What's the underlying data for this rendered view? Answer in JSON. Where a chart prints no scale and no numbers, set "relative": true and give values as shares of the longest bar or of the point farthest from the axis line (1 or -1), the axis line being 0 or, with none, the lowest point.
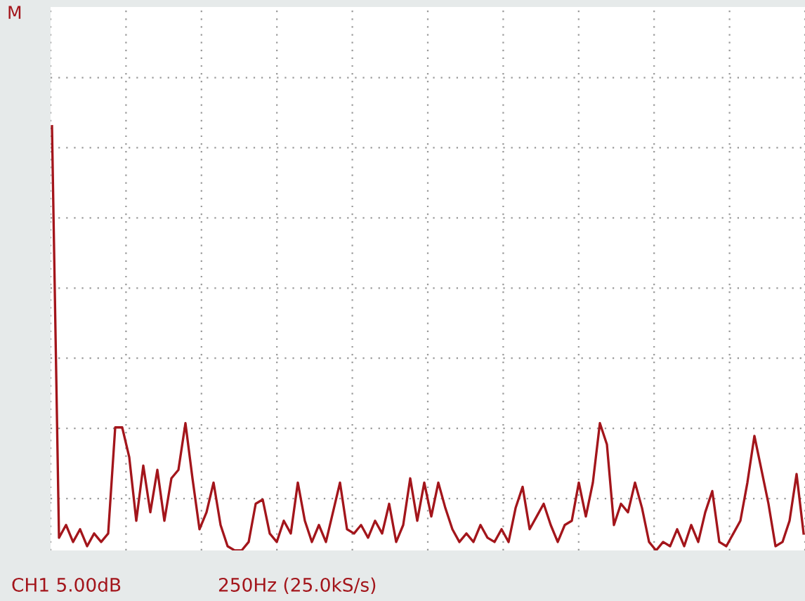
{
  "chart_data": {
    "type": "line",
    "relative": true,
    "grid": true,
    "categories": [
      null,
      null,
      null,
      null,
      null,
      null,
      null,
      null,
      null,
      null,
      null,
      null,
      null,
      null,
      null,
      null,
      null,
      null,
      null,
      null,
      null,
      null,
      null,
      null,
      null,
      null,
      null,
      null,
      null,
      null,
      null,
      null,
      null,
      null,
      null,
      null,
      null,
      null,
      null,
      null,
      null,
      null,
      null,
      null,
      null,
      null,
      null,
      null,
      null,
      null,
      null,
      null,
      null,
      null,
      null,
      null,
      null,
      null,
      null,
      null,
      null,
      null,
      null,
      null,
      null,
      null,
      null,
      null,
      null,
      null,
      null,
      null,
      null,
      null,
      null,
      null,
      null,
      null,
      null,
      null,
      null,
      null,
      null,
      null,
      null,
      null,
      null,
      null,
      null,
      null,
      null,
      null,
      null,
      null,
      null,
      null,
      null,
      null,
      null,
      null,
      null,
      null,
      null,
      null,
      null,
      null,
      null,
      null
    ],
    "series": [
      {
        "color": "#a3151b",
        "values": [
          1.0,
          0.03,
          0.06,
          0.02,
          0.05,
          0.01,
          0.04,
          0.02,
          0.04,
          0.29,
          0.29,
          0.22,
          0.07,
          0.2,
          0.09,
          0.19,
          0.07,
          0.17,
          0.19,
          0.3,
          0.17,
          0.05,
          0.09,
          0.16,
          0.06,
          0.01,
          0,
          0,
          0.02,
          0.11,
          0.12,
          0.04,
          0.02,
          0.07,
          0.04,
          0.16,
          0.07,
          0.02,
          0.06,
          0.02,
          0.09,
          0.16,
          0.05,
          0.04,
          0.06,
          0.03,
          0.07,
          0.04,
          0.11,
          0.02,
          0.06,
          0.17,
          0.07,
          0.16,
          0.08,
          0.16,
          0.1,
          0.05,
          0.02,
          0.04,
          0.02,
          0.06,
          0.03,
          0.02,
          0.05,
          0.02,
          0.1,
          0.15,
          0.05,
          0.08,
          0.11,
          0.06,
          0.02,
          0.06,
          0.07,
          0.16,
          0.08,
          0.16,
          0.3,
          0.25,
          0.06,
          0.11,
          0.09,
          0.16,
          0.1,
          0.02,
          0,
          0.02,
          0.01,
          0.05,
          0.01,
          0.06,
          0.02,
          0.09,
          0.14,
          0.02,
          0.01,
          0.04,
          0.07,
          0.16,
          0.27,
          0.19,
          0.11,
          0.01,
          0.02,
          0.07,
          0.18,
          0.04
        ]
      }
    ],
    "annotations": [
      "M",
      "CH1 5.00dB",
      "250Hz (25.0kS/s)"
    ]
  }
}
